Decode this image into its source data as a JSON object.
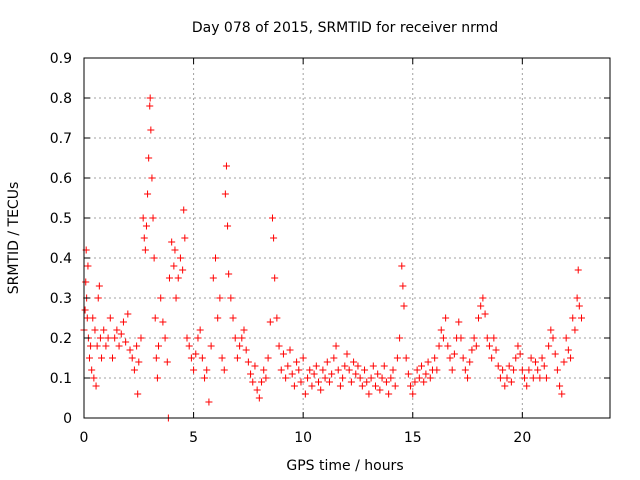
{
  "chart_data": {
    "type": "scatter",
    "title": "Day 078 of 2015, SRMTID for receiver nrmd",
    "xlabel": "GPS time / hours",
    "ylabel": "SRMTID / TECUs",
    "xlim": [
      0,
      24
    ],
    "ylim": [
      0,
      0.9
    ],
    "xticks": [
      0,
      5,
      10,
      15,
      20
    ],
    "xtick_labels": [
      "0",
      "5",
      "10",
      "15",
      "20"
    ],
    "yticks": [
      0,
      0.1,
      0.2,
      0.3,
      0.4,
      0.5,
      0.6,
      0.7,
      0.8,
      0.9
    ],
    "ytick_labels": [
      "0",
      "0.1",
      "0.2",
      "0.3",
      "0.4",
      "0.5",
      "0.6",
      "0.7",
      "0.8",
      "0.9"
    ],
    "grid": true,
    "marker": "+",
    "color": "#ff0000",
    "series": [
      {
        "name": "SRMTID",
        "points": [
          [
            0.0,
            0.22
          ],
          [
            0.05,
            0.27
          ],
          [
            0.08,
            0.34
          ],
          [
            0.1,
            0.42
          ],
          [
            0.12,
            0.3
          ],
          [
            0.15,
            0.25
          ],
          [
            0.18,
            0.38
          ],
          [
            0.2,
            0.2
          ],
          [
            0.25,
            0.15
          ],
          [
            0.3,
            0.18
          ],
          [
            0.35,
            0.12
          ],
          [
            0.4,
            0.25
          ],
          [
            0.45,
            0.1
          ],
          [
            0.5,
            0.22
          ],
          [
            0.55,
            0.08
          ],
          [
            0.6,
            0.18
          ],
          [
            0.65,
            0.3
          ],
          [
            0.7,
            0.33
          ],
          [
            0.75,
            0.2
          ],
          [
            0.8,
            0.15
          ],
          [
            0.9,
            0.22
          ],
          [
            1.0,
            0.18
          ],
          [
            1.1,
            0.2
          ],
          [
            1.2,
            0.25
          ],
          [
            1.3,
            0.15
          ],
          [
            1.4,
            0.2
          ],
          [
            1.5,
            0.22
          ],
          [
            1.6,
            0.18
          ],
          [
            1.7,
            0.21
          ],
          [
            1.8,
            0.24
          ],
          [
            1.9,
            0.19
          ],
          [
            2.0,
            0.26
          ],
          [
            2.1,
            0.17
          ],
          [
            2.2,
            0.15
          ],
          [
            2.3,
            0.12
          ],
          [
            2.4,
            0.18
          ],
          [
            2.45,
            0.06
          ],
          [
            2.5,
            0.14
          ],
          [
            2.6,
            0.2
          ],
          [
            2.7,
            0.5
          ],
          [
            2.75,
            0.45
          ],
          [
            2.8,
            0.42
          ],
          [
            2.85,
            0.48
          ],
          [
            2.9,
            0.56
          ],
          [
            2.95,
            0.65
          ],
          [
            3.0,
            0.78
          ],
          [
            3.02,
            0.8
          ],
          [
            3.05,
            0.72
          ],
          [
            3.1,
            0.6
          ],
          [
            3.15,
            0.5
          ],
          [
            3.2,
            0.4
          ],
          [
            3.25,
            0.25
          ],
          [
            3.3,
            0.15
          ],
          [
            3.35,
            0.1
          ],
          [
            3.4,
            0.18
          ],
          [
            3.5,
            0.3
          ],
          [
            3.6,
            0.24
          ],
          [
            3.7,
            0.2
          ],
          [
            3.8,
            0.14
          ],
          [
            3.85,
            0.0
          ],
          [
            3.9,
            0.35
          ],
          [
            4.0,
            0.44
          ],
          [
            4.1,
            0.38
          ],
          [
            4.15,
            0.42
          ],
          [
            4.2,
            0.3
          ],
          [
            4.3,
            0.35
          ],
          [
            4.4,
            0.4
          ],
          [
            4.5,
            0.37
          ],
          [
            4.55,
            0.52
          ],
          [
            4.6,
            0.45
          ],
          [
            4.7,
            0.2
          ],
          [
            4.8,
            0.18
          ],
          [
            4.9,
            0.15
          ],
          [
            5.0,
            0.12
          ],
          [
            5.1,
            0.16
          ],
          [
            5.2,
            0.2
          ],
          [
            5.3,
            0.22
          ],
          [
            5.4,
            0.15
          ],
          [
            5.5,
            0.1
          ],
          [
            5.6,
            0.12
          ],
          [
            5.7,
            0.04
          ],
          [
            5.8,
            0.18
          ],
          [
            5.9,
            0.35
          ],
          [
            6.0,
            0.4
          ],
          [
            6.1,
            0.25
          ],
          [
            6.2,
            0.3
          ],
          [
            6.3,
            0.15
          ],
          [
            6.4,
            0.12
          ],
          [
            6.45,
            0.56
          ],
          [
            6.5,
            0.63
          ],
          [
            6.55,
            0.48
          ],
          [
            6.6,
            0.36
          ],
          [
            6.7,
            0.3
          ],
          [
            6.8,
            0.25
          ],
          [
            6.9,
            0.2
          ],
          [
            7.0,
            0.15
          ],
          [
            7.1,
            0.18
          ],
          [
            7.2,
            0.2
          ],
          [
            7.3,
            0.22
          ],
          [
            7.4,
            0.17
          ],
          [
            7.5,
            0.14
          ],
          [
            7.6,
            0.11
          ],
          [
            7.7,
            0.09
          ],
          [
            7.8,
            0.13
          ],
          [
            7.9,
            0.07
          ],
          [
            8.0,
            0.05
          ],
          [
            8.1,
            0.09
          ],
          [
            8.2,
            0.12
          ],
          [
            8.3,
            0.1
          ],
          [
            8.4,
            0.15
          ],
          [
            8.5,
            0.24
          ],
          [
            8.6,
            0.5
          ],
          [
            8.65,
            0.45
          ],
          [
            8.7,
            0.35
          ],
          [
            8.8,
            0.25
          ],
          [
            8.9,
            0.18
          ],
          [
            9.0,
            0.12
          ],
          [
            9.1,
            0.16
          ],
          [
            9.2,
            0.1
          ],
          [
            9.3,
            0.13
          ],
          [
            9.4,
            0.17
          ],
          [
            9.5,
            0.11
          ],
          [
            9.6,
            0.08
          ],
          [
            9.7,
            0.14
          ],
          [
            9.8,
            0.12
          ],
          [
            9.9,
            0.09
          ],
          [
            10.0,
            0.15
          ],
          [
            10.1,
            0.06
          ],
          [
            10.2,
            0.1
          ],
          [
            10.3,
            0.12
          ],
          [
            10.4,
            0.08
          ],
          [
            10.5,
            0.11
          ],
          [
            10.6,
            0.13
          ],
          [
            10.7,
            0.09
          ],
          [
            10.8,
            0.07
          ],
          [
            10.9,
            0.12
          ],
          [
            11.0,
            0.1
          ],
          [
            11.1,
            0.14
          ],
          [
            11.2,
            0.09
          ],
          [
            11.3,
            0.11
          ],
          [
            11.4,
            0.15
          ],
          [
            11.5,
            0.18
          ],
          [
            11.6,
            0.12
          ],
          [
            11.7,
            0.08
          ],
          [
            11.8,
            0.1
          ],
          [
            11.9,
            0.13
          ],
          [
            12.0,
            0.16
          ],
          [
            12.1,
            0.12
          ],
          [
            12.2,
            0.09
          ],
          [
            12.3,
            0.14
          ],
          [
            12.4,
            0.11
          ],
          [
            12.5,
            0.13
          ],
          [
            12.6,
            0.1
          ],
          [
            12.7,
            0.08
          ],
          [
            12.8,
            0.12
          ],
          [
            12.9,
            0.09
          ],
          [
            13.0,
            0.06
          ],
          [
            13.1,
            0.1
          ],
          [
            13.2,
            0.13
          ],
          [
            13.3,
            0.08
          ],
          [
            13.4,
            0.11
          ],
          [
            13.5,
            0.07
          ],
          [
            13.6,
            0.1
          ],
          [
            13.7,
            0.13
          ],
          [
            13.8,
            0.09
          ],
          [
            13.9,
            0.06
          ],
          [
            14.0,
            0.1
          ],
          [
            14.1,
            0.12
          ],
          [
            14.2,
            0.08
          ],
          [
            14.3,
            0.15
          ],
          [
            14.4,
            0.2
          ],
          [
            14.5,
            0.38
          ],
          [
            14.55,
            0.33
          ],
          [
            14.6,
            0.28
          ],
          [
            14.7,
            0.15
          ],
          [
            14.8,
            0.11
          ],
          [
            14.9,
            0.08
          ],
          [
            15.0,
            0.06
          ],
          [
            15.1,
            0.09
          ],
          [
            15.2,
            0.12
          ],
          [
            15.3,
            0.1
          ],
          [
            15.4,
            0.13
          ],
          [
            15.5,
            0.09
          ],
          [
            15.6,
            0.11
          ],
          [
            15.7,
            0.14
          ],
          [
            15.8,
            0.1
          ],
          [
            15.9,
            0.12
          ],
          [
            16.0,
            0.15
          ],
          [
            16.1,
            0.12
          ],
          [
            16.2,
            0.18
          ],
          [
            16.3,
            0.22
          ],
          [
            16.4,
            0.2
          ],
          [
            16.5,
            0.25
          ],
          [
            16.6,
            0.18
          ],
          [
            16.7,
            0.15
          ],
          [
            16.8,
            0.12
          ],
          [
            16.9,
            0.16
          ],
          [
            17.0,
            0.2
          ],
          [
            17.1,
            0.24
          ],
          [
            17.2,
            0.2
          ],
          [
            17.3,
            0.15
          ],
          [
            17.4,
            0.12
          ],
          [
            17.5,
            0.1
          ],
          [
            17.6,
            0.14
          ],
          [
            17.7,
            0.17
          ],
          [
            17.8,
            0.2
          ],
          [
            17.9,
            0.18
          ],
          [
            18.0,
            0.25
          ],
          [
            18.1,
            0.28
          ],
          [
            18.2,
            0.3
          ],
          [
            18.3,
            0.26
          ],
          [
            18.4,
            0.2
          ],
          [
            18.5,
            0.18
          ],
          [
            18.6,
            0.15
          ],
          [
            18.7,
            0.2
          ],
          [
            18.8,
            0.17
          ],
          [
            18.9,
            0.13
          ],
          [
            19.0,
            0.1
          ],
          [
            19.1,
            0.12
          ],
          [
            19.2,
            0.08
          ],
          [
            19.3,
            0.1
          ],
          [
            19.4,
            0.13
          ],
          [
            19.5,
            0.09
          ],
          [
            19.6,
            0.12
          ],
          [
            19.7,
            0.15
          ],
          [
            19.8,
            0.18
          ],
          [
            19.9,
            0.16
          ],
          [
            20.0,
            0.12
          ],
          [
            20.1,
            0.1
          ],
          [
            20.2,
            0.08
          ],
          [
            20.3,
            0.12
          ],
          [
            20.4,
            0.15
          ],
          [
            20.5,
            0.1
          ],
          [
            20.6,
            0.14
          ],
          [
            20.7,
            0.12
          ],
          [
            20.8,
            0.1
          ],
          [
            20.9,
            0.15
          ],
          [
            21.0,
            0.13
          ],
          [
            21.1,
            0.1
          ],
          [
            21.2,
            0.18
          ],
          [
            21.3,
            0.22
          ],
          [
            21.4,
            0.2
          ],
          [
            21.5,
            0.16
          ],
          [
            21.6,
            0.12
          ],
          [
            21.7,
            0.08
          ],
          [
            21.8,
            0.06
          ],
          [
            21.9,
            0.14
          ],
          [
            22.0,
            0.2
          ],
          [
            22.1,
            0.17
          ],
          [
            22.2,
            0.15
          ],
          [
            22.3,
            0.25
          ],
          [
            22.4,
            0.22
          ],
          [
            22.5,
            0.3
          ],
          [
            22.55,
            0.37
          ],
          [
            22.6,
            0.28
          ],
          [
            22.7,
            0.25
          ]
        ]
      }
    ]
  }
}
